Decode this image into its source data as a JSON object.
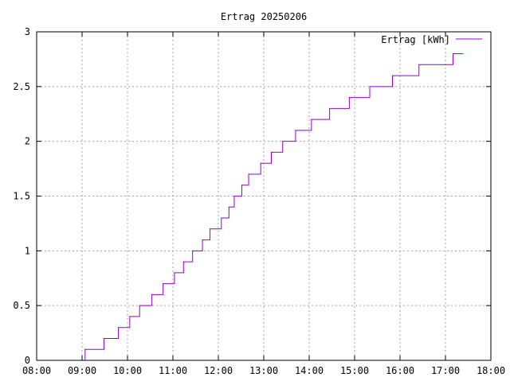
{
  "chart_data": {
    "type": "line",
    "title": "Ertrag 20250206",
    "xlabel": "",
    "ylabel": "",
    "x_ticks": [
      "08:00",
      "09:00",
      "10:00",
      "11:00",
      "12:00",
      "13:00",
      "14:00",
      "15:00",
      "16:00",
      "17:00",
      "18:00"
    ],
    "y_ticks": [
      "0",
      "0.5",
      "1",
      "1.5",
      "2",
      "2.5",
      "3"
    ],
    "xlim": [
      "08:00",
      "18:00"
    ],
    "ylim": [
      0,
      3
    ],
    "grid": true,
    "legend": "top-right",
    "series": [
      {
        "name": "Ertrag [kWh]",
        "color": "#9400d3",
        "style": "step",
        "points": [
          [
            "09:01",
            0.0
          ],
          [
            "09:04",
            0.1
          ],
          [
            "09:29",
            0.2
          ],
          [
            "09:48",
            0.3
          ],
          [
            "10:03",
            0.4
          ],
          [
            "10:16",
            0.5
          ],
          [
            "10:32",
            0.6
          ],
          [
            "10:47",
            0.7
          ],
          [
            "11:02",
            0.8
          ],
          [
            "11:14",
            0.9
          ],
          [
            "11:26",
            1.0
          ],
          [
            "11:39",
            1.1
          ],
          [
            "11:49",
            1.2
          ],
          [
            "12:04",
            1.3
          ],
          [
            "12:14",
            1.4
          ],
          [
            "12:21",
            1.5
          ],
          [
            "12:31",
            1.6
          ],
          [
            "12:40",
            1.7
          ],
          [
            "12:56",
            1.8
          ],
          [
            "13:10",
            1.9
          ],
          [
            "13:25",
            2.0
          ],
          [
            "13:42",
            2.1
          ],
          [
            "14:03",
            2.2
          ],
          [
            "14:27",
            2.3
          ],
          [
            "14:53",
            2.4
          ],
          [
            "15:20",
            2.5
          ],
          [
            "15:50",
            2.6
          ],
          [
            "16:25",
            2.7
          ],
          [
            "17:10",
            2.8
          ],
          [
            "17:23",
            2.8
          ]
        ]
      }
    ]
  }
}
